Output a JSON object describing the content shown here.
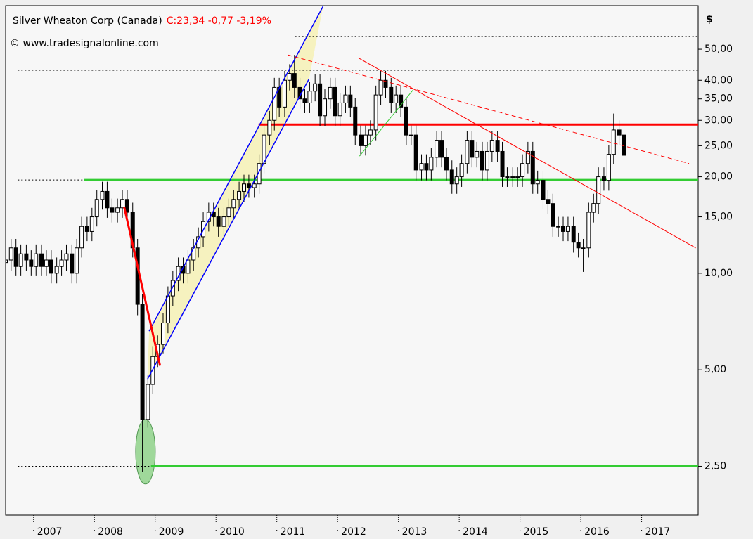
{
  "chart_data": {
    "type": "candlestick",
    "title": "Silver Wheaton Corp  (Canada)",
    "quote": "C:23,34 -0,77 -3,19%",
    "copyright": "© www.tradesignalonline.com",
    "y_axis_label": "$",
    "log_y": true,
    "up_color": "#ffffff",
    "down_color": "#000000",
    "x": [
      2006.54,
      2006.63,
      2006.71,
      2006.79,
      2006.88,
      2006.96,
      2007.04,
      2007.13,
      2007.21,
      2007.29,
      2007.38,
      2007.46,
      2007.54,
      2007.63,
      2007.71,
      2007.79,
      2007.88,
      2007.96,
      2008.04,
      2008.13,
      2008.21,
      2008.29,
      2008.38,
      2008.46,
      2008.54,
      2008.63,
      2008.71,
      2008.79,
      2008.88,
      2008.96,
      2009.04,
      2009.13,
      2009.21,
      2009.29,
      2009.38,
      2009.46,
      2009.54,
      2009.63,
      2009.71,
      2009.79,
      2009.88,
      2009.96,
      2010.04,
      2010.13,
      2010.21,
      2010.29,
      2010.38,
      2010.46,
      2010.54,
      2010.63,
      2010.71,
      2010.79,
      2010.88,
      2010.96,
      2011.04,
      2011.13,
      2011.21,
      2011.29,
      2011.38,
      2011.46,
      2011.54,
      2011.63,
      2011.71,
      2011.79,
      2011.88,
      2011.96,
      2012.04,
      2012.13,
      2012.21,
      2012.29,
      2012.38,
      2012.46,
      2012.54,
      2012.63,
      2012.71,
      2012.79,
      2012.88,
      2012.96,
      2013.04,
      2013.13,
      2013.21,
      2013.29,
      2013.38,
      2013.46,
      2013.54,
      2013.63,
      2013.71,
      2013.79,
      2013.88,
      2013.96,
      2014.04,
      2014.13,
      2014.21,
      2014.29,
      2014.38,
      2014.46,
      2014.54,
      2014.63,
      2014.71,
      2014.79,
      2014.88,
      2014.96,
      2015.04,
      2015.13,
      2015.21,
      2015.29,
      2015.38,
      2015.46,
      2015.54,
      2015.63,
      2015.71,
      2015.79,
      2015.88,
      2015.96,
      2016.04,
      2016.13,
      2016.21,
      2016.29,
      2016.38,
      2016.46,
      2016.54,
      2016.63,
      2016.71
    ],
    "open": [
      10.8,
      11,
      12,
      10.5,
      11.5,
      11,
      10.5,
      11.5,
      10.5,
      11,
      10,
      10.5,
      11,
      11.5,
      10,
      12,
      14,
      13.5,
      15,
      17,
      18,
      16,
      15.5,
      16,
      17,
      15.5,
      12,
      8,
      3.5,
      4.5,
      5.5,
      6,
      7,
      8.5,
      9.5,
      10.5,
      10,
      11,
      12,
      13,
      14.5,
      15.5,
      15,
      14,
      15,
      16,
      17,
      18,
      19,
      18.5,
      19,
      22,
      27,
      30,
      38,
      33,
      40,
      42,
      38,
      35,
      34,
      37,
      39,
      31,
      35,
      38,
      31,
      34,
      36,
      33,
      27,
      25,
      27,
      28,
      36,
      40,
      38,
      34,
      36,
      33,
      27,
      27,
      21,
      22,
      21,
      23,
      26,
      23,
      21,
      19,
      20,
      22,
      26,
      23,
      24,
      21,
      24,
      26,
      24,
      20,
      20,
      20,
      20,
      22,
      24,
      19,
      19.5,
      17,
      16.5,
      14,
      14,
      13.5,
      14,
      12.5,
      12,
      12,
      15.5,
      16.5,
      20,
      19.5,
      23.5,
      28,
      27
    ],
    "high": [
      11.8,
      12.8,
      12.8,
      12.3,
      12.3,
      11.8,
      12.3,
      12.3,
      11.8,
      11.8,
      11.2,
      11.8,
      12.3,
      12.3,
      12.8,
      15,
      15,
      16,
      18.2,
      19.3,
      19.3,
      17.1,
      17.1,
      18.2,
      18.2,
      16.6,
      12.8,
      8.6,
      4.8,
      5.9,
      6.4,
      7.5,
      9.1,
      10.2,
      11.2,
      11.2,
      11.8,
      12.8,
      13.9,
      15.5,
      16.6,
      16.6,
      16,
      16,
      17.1,
      18.2,
      19.3,
      20.3,
      20.3,
      20.3,
      23.5,
      28.9,
      32.1,
      40.7,
      40.7,
      42.8,
      44.9,
      48,
      40.7,
      37.5,
      39.6,
      41.7,
      41.7,
      37.5,
      40.7,
      40.7,
      36.4,
      38.5,
      38.5,
      35.3,
      28.9,
      28.9,
      30,
      38.5,
      42.8,
      42.8,
      40.7,
      38.5,
      38.5,
      35.3,
      28.9,
      28.9,
      23.5,
      23.5,
      24.6,
      27.8,
      27.8,
      24.6,
      22.5,
      21.4,
      23.5,
      27.8,
      27.8,
      25.7,
      25.7,
      25.7,
      27.8,
      27.8,
      25.7,
      21.4,
      21.4,
      21.4,
      23.5,
      25.7,
      25.7,
      20.9,
      20.9,
      18.2,
      17.7,
      15,
      15,
      15,
      15,
      13.4,
      12.8,
      16.6,
      17.7,
      21.4,
      21.4,
      25.1,
      31.5,
      30,
      28.9
    ],
    "low": [
      10,
      10.2,
      9.8,
      9.8,
      10.2,
      9.8,
      9.8,
      9.8,
      9.8,
      9.3,
      9.3,
      9.8,
      10.2,
      9.3,
      9.3,
      11.2,
      12.6,
      12.6,
      14,
      15.8,
      14.9,
      14.4,
      14.4,
      14.9,
      14.4,
      11.2,
      7.4,
      2.4,
      3.3,
      4.2,
      5.1,
      5.6,
      6.5,
      7.9,
      8.8,
      9.3,
      9.3,
      10.2,
      11.2,
      12.1,
      13.5,
      14,
      13,
      13,
      14,
      14.9,
      15.8,
      16.7,
      17.2,
      17.2,
      17.7,
      20.5,
      25.1,
      27.9,
      30.7,
      30.7,
      37.2,
      35.3,
      32.6,
      31.6,
      31.6,
      34.4,
      28.8,
      28.8,
      32.6,
      28.8,
      28.8,
      31.6,
      30.7,
      25.1,
      23.3,
      23.3,
      25.1,
      26,
      33.5,
      35.3,
      31.6,
      31.6,
      30.7,
      25.1,
      25.1,
      19.5,
      19.5,
      19.5,
      19.5,
      21.4,
      21.4,
      19.5,
      17.7,
      17.7,
      18.6,
      20.5,
      21.4,
      21.4,
      19.5,
      19.5,
      22.3,
      22.3,
      18.6,
      18.6,
      18.6,
      18.6,
      18.6,
      20.5,
      17.7,
      17.7,
      15.8,
      15.3,
      13,
      13,
      12.6,
      12.6,
      11.6,
      11.2,
      10.1,
      11.2,
      14.4,
      15.3,
      18.1,
      18.1,
      21.9,
      25.1,
      21.4
    ],
    "close": [
      11,
      12,
      10.5,
      11.5,
      11,
      10.5,
      11.5,
      10.5,
      11,
      10,
      10.5,
      11,
      11.5,
      10,
      12,
      14,
      13.5,
      15,
      17,
      18,
      16,
      15.5,
      16,
      17,
      15.5,
      12,
      8,
      3.5,
      4.5,
      5.5,
      6,
      7,
      8.5,
      9.5,
      10.5,
      10,
      11,
      12,
      13,
      14.5,
      15.5,
      15,
      14,
      15,
      16,
      17,
      18,
      19,
      18.5,
      19,
      22,
      27,
      30,
      38,
      33,
      40,
      42,
      38,
      35,
      34,
      37,
      39,
      31,
      35,
      38,
      31,
      34,
      36,
      33,
      27,
      25,
      27,
      28,
      36,
      40,
      38,
      34,
      36,
      33,
      27,
      27,
      21,
      22,
      21,
      23,
      26,
      23,
      21,
      19,
      20,
      22,
      26,
      23,
      24,
      21,
      24,
      26,
      24,
      20,
      20,
      20,
      20,
      22,
      24,
      19,
      19.5,
      17,
      16.5,
      14,
      14,
      13.5,
      14,
      12.5,
      12,
      12,
      15.5,
      16.5,
      20,
      19.5,
      23.5,
      28,
      27,
      23.34
    ],
    "xlim": [
      2006.54,
      2017.93
    ],
    "xticks": [
      2007,
      2008,
      2009,
      2010,
      2011,
      2012,
      2013,
      2014,
      2015,
      2016,
      2017
    ],
    "ylim": [
      1.76,
      68.4
    ],
    "yticks": [
      {
        "value": 2.5,
        "label": "2,50"
      },
      {
        "value": 5,
        "label": "5,00"
      },
      {
        "value": 10,
        "label": "10,00"
      },
      {
        "value": 15,
        "label": "15,00"
      },
      {
        "value": 20,
        "label": "20,00"
      },
      {
        "value": 25,
        "label": "25,00"
      },
      {
        "value": 30,
        "label": "30,00"
      },
      {
        "value": 35,
        "label": "35,00"
      },
      {
        "value": 40,
        "label": "40,00"
      },
      {
        "value": 50,
        "label": "50,00"
      }
    ],
    "channel": {
      "color": "#0000ff",
      "fill": "#f5f0b0",
      "upper": [
        [
          2008.9,
          6.6
        ],
        [
          2011.76,
          68
        ]
      ],
      "lower": [
        [
          2008.87,
          4.66
        ],
        [
          2011.53,
          40.4
        ]
      ]
    },
    "highlight": {
      "x": 2008.84,
      "ylow": 2.2,
      "yhigh": 3.5,
      "color": "#9fd89a"
    },
    "levels": [
      {
        "value": 29.1,
        "from": 2010.7,
        "color": "#ff0000",
        "style": "solid"
      },
      {
        "value": 19.55,
        "from": 2007.83,
        "color": "#33cc33",
        "style": "solid"
      },
      {
        "value": 2.5,
        "from": 2008.93,
        "color": "#33cc33",
        "style": "solid"
      },
      {
        "value": 54.8,
        "from": 2011.3,
        "color": "#000000",
        "style": "dotted"
      },
      {
        "value": 43,
        "from": 2006.74,
        "color": "#000000",
        "style": "dotted"
      },
      {
        "value": 19.55,
        "from": 2006.74,
        "to": 2007.83,
        "color": "#000000",
        "style": "dotted"
      },
      {
        "value": 2.5,
        "from": 2006.74,
        "to": 2008.93,
        "color": "#000000",
        "style": "dotted"
      }
    ],
    "trendlines": [
      {
        "color": "#ff0000",
        "width": 3,
        "style": "solid",
        "points": [
          [
            2008.49,
            16.1
          ],
          [
            2009.08,
            5.15
          ]
        ]
      },
      {
        "color": "#ff0000",
        "width": 1,
        "style": "solid",
        "points": [
          [
            2012.34,
            47
          ],
          [
            2017.89,
            12
          ]
        ]
      },
      {
        "color": "#ff0000",
        "width": 1,
        "style": "dashed",
        "points": [
          [
            2011.18,
            48
          ],
          [
            2017.78,
            22
          ]
        ]
      },
      {
        "color": "#33cc33",
        "width": 1,
        "style": "solid",
        "points": [
          [
            2012.36,
            23.2
          ],
          [
            2013.24,
            37.3
          ]
        ]
      }
    ]
  }
}
